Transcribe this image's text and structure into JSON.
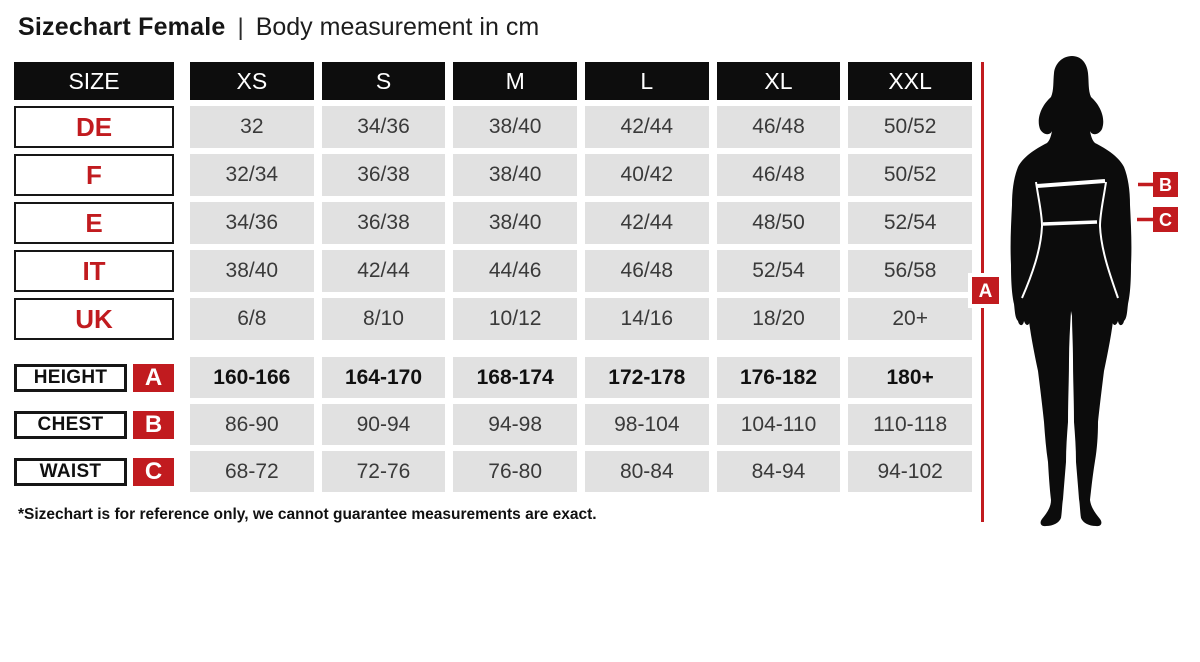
{
  "title": {
    "main": "Sizechart Female",
    "separator": "|",
    "subtitle": "Body measurement in cm"
  },
  "table": {
    "size_header": "SIZE",
    "columns": [
      "XS",
      "S",
      "M",
      "L",
      "XL",
      "XXL"
    ],
    "region_rows": [
      {
        "label": "DE",
        "values": [
          "32",
          "34/36",
          "38/40",
          "42/44",
          "46/48",
          "50/52"
        ]
      },
      {
        "label": "F",
        "values": [
          "32/34",
          "36/38",
          "38/40",
          "40/42",
          "46/48",
          "50/52"
        ]
      },
      {
        "label": "E",
        "values": [
          "34/36",
          "36/38",
          "38/40",
          "42/44",
          "48/50",
          "52/54"
        ]
      },
      {
        "label": "IT",
        "values": [
          "38/40",
          "42/44",
          "44/46",
          "46/48",
          "52/54",
          "56/58"
        ]
      },
      {
        "label": "UK",
        "values": [
          "6/8",
          "8/10",
          "10/12",
          "14/16",
          "18/20",
          "20+"
        ]
      }
    ],
    "measurement_rows": [
      {
        "label": "HEIGHT",
        "badge": "A",
        "bold": true,
        "values": [
          "160-166",
          "164-170",
          "168-174",
          "172-178",
          "176-182",
          "180+"
        ]
      },
      {
        "label": "CHEST",
        "badge": "B",
        "bold": false,
        "values": [
          "86-90",
          "90-94",
          "94-98",
          "98-104",
          "104-110",
          "110-118"
        ]
      },
      {
        "label": "WAIST",
        "badge": "C",
        "bold": false,
        "values": [
          "68-72",
          "72-76",
          "76-80",
          "80-84",
          "84-94",
          "94-102"
        ]
      }
    ]
  },
  "footnote": "*Sizechart is for reference only, we cannot guarantee measurements are exact.",
  "figure": {
    "height_label": "A",
    "chest_label": "B",
    "waist_label": "C"
  },
  "colors": {
    "accent_red": "#c11b1f",
    "cell_gray": "#e1e1e1",
    "ink_black": "#0d0d0d"
  }
}
